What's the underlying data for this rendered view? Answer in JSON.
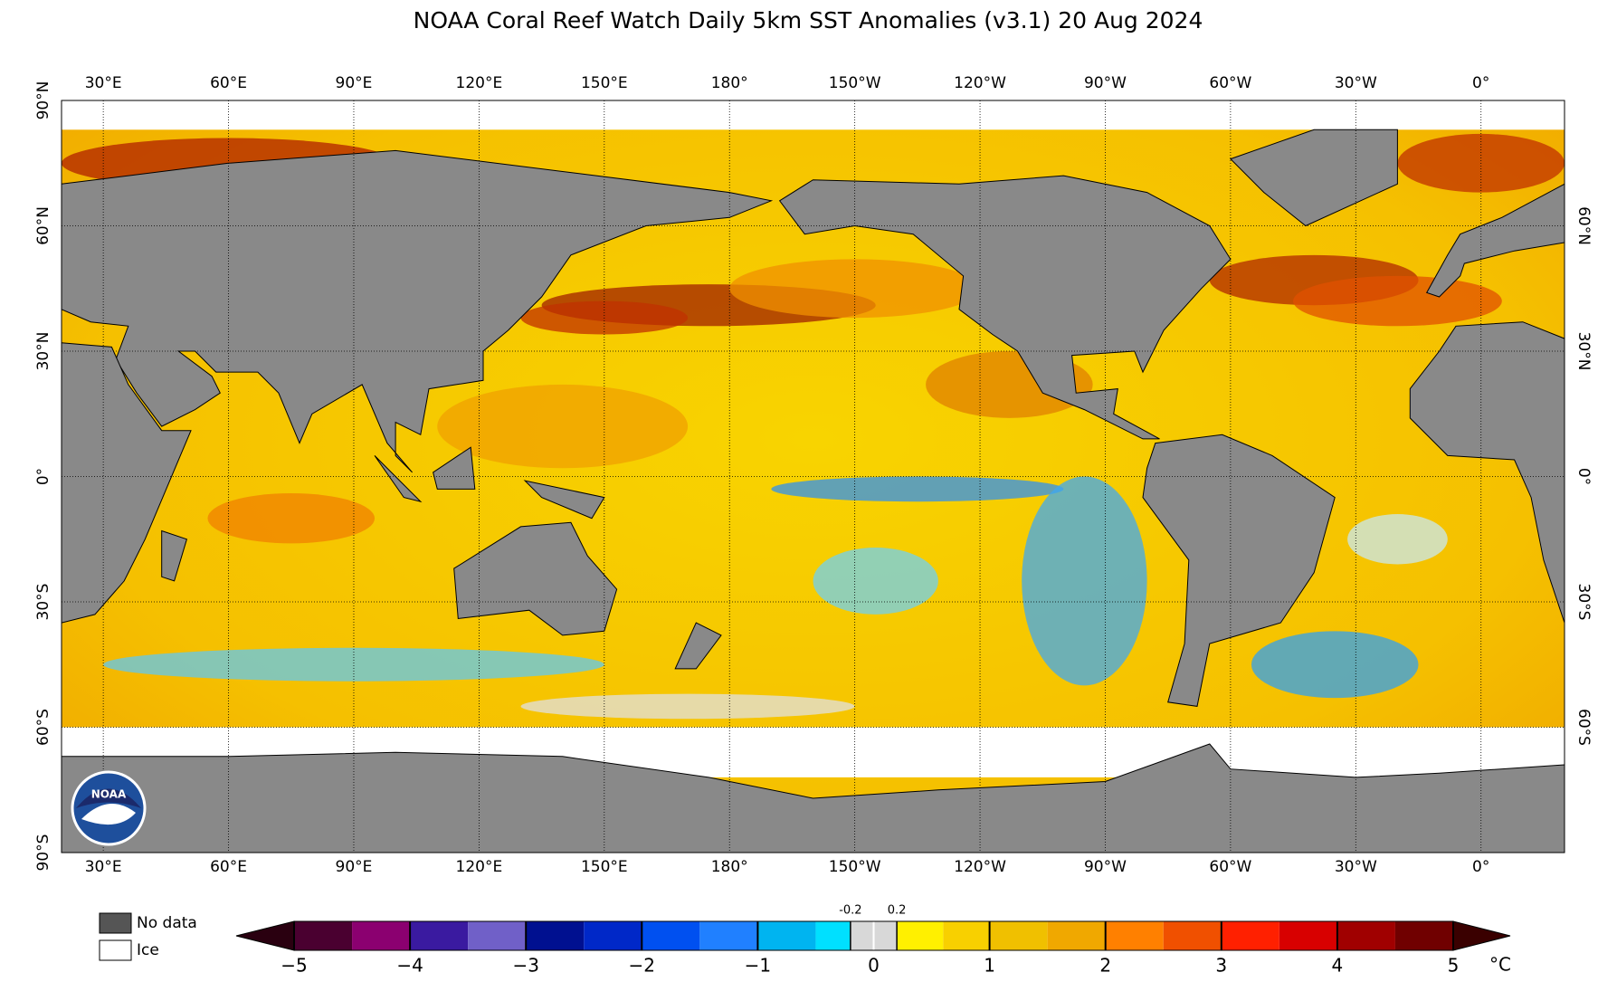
{
  "title": "NOAA Coral Reef Watch Daily 5km SST Anomalies  (v3.1)   20 Aug 2024",
  "map": {
    "lon_labels": [
      "30°E",
      "60°E",
      "90°E",
      "120°E",
      "150°E",
      "180°",
      "150°W",
      "120°W",
      "90°W",
      "60°W",
      "30°W",
      "0°"
    ],
    "lat_labels_left": [
      "90°N",
      "60°N",
      "30°N",
      "0°",
      "30°S",
      "60°S",
      "90°S"
    ],
    "lat_labels_right": [
      "60°N",
      "30°N",
      "0°",
      "30°S",
      "60°S"
    ],
    "logo": "NOAA"
  },
  "legend": {
    "no_data": "No data",
    "ice": "Ice"
  },
  "colorbar": {
    "range": [
      -5,
      5
    ],
    "ticks": [
      {
        "value": -5,
        "label": "−5"
      },
      {
        "value": -4,
        "label": "−4"
      },
      {
        "value": -3,
        "label": "−3"
      },
      {
        "value": -2,
        "label": "−2"
      },
      {
        "value": -1,
        "label": "−1"
      },
      0,
      1,
      2,
      3,
      4,
      5
    ],
    "minor_ticks": [
      -0.2,
      0.2
    ],
    "unit": "°C",
    "under_color": "#2a0010",
    "over_color": "#3a0000",
    "bands": [
      {
        "from": -5,
        "to": -4.5,
        "color": "#4a0030"
      },
      {
        "from": -4.5,
        "to": -4,
        "color": "#8b0070"
      },
      {
        "from": -4,
        "to": -3.5,
        "color": "#3a1aa0"
      },
      {
        "from": -3.5,
        "to": -3,
        "color": "#7060c8"
      },
      {
        "from": -3,
        "to": -2.5,
        "color": "#001090"
      },
      {
        "from": -2.5,
        "to": -2,
        "color": "#0028c8"
      },
      {
        "from": -2,
        "to": -1.5,
        "color": "#0050f0"
      },
      {
        "from": -1.5,
        "to": -1,
        "color": "#2080ff"
      },
      {
        "from": -1,
        "to": -0.5,
        "color": "#00b4f0"
      },
      {
        "from": -0.5,
        "to": -0.2,
        "color": "#00e0ff"
      },
      {
        "from": -0.2,
        "to": 0,
        "color": "#d8d8d8"
      },
      {
        "from": 0,
        "to": 0.2,
        "color": "#d8d8d8"
      },
      {
        "from": 0.2,
        "to": 0.6,
        "color": "#fff000"
      },
      {
        "from": 0.6,
        "to": 1,
        "color": "#f8d000"
      },
      {
        "from": 1,
        "to": 1.5,
        "color": "#f0c000"
      },
      {
        "from": 1.5,
        "to": 2,
        "color": "#f0a800"
      },
      {
        "from": 2,
        "to": 2.5,
        "color": "#ff8000"
      },
      {
        "from": 2.5,
        "to": 3,
        "color": "#f05000"
      },
      {
        "from": 3,
        "to": 3.5,
        "color": "#ff2000"
      },
      {
        "from": 3.5,
        "to": 4,
        "color": "#d80000"
      },
      {
        "from": 4,
        "to": 4.5,
        "color": "#a00000"
      },
      {
        "from": 4.5,
        "to": 5,
        "color": "#700000"
      }
    ]
  }
}
